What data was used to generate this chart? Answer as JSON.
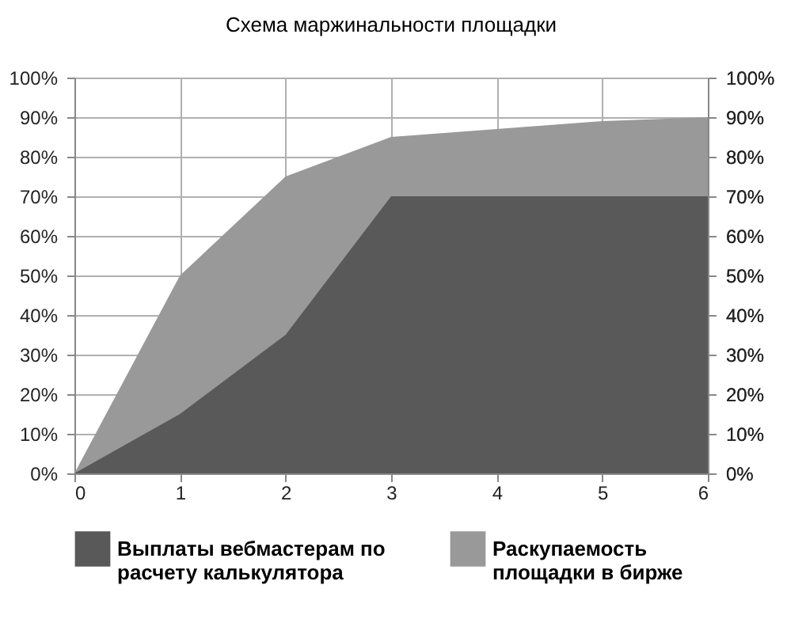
{
  "chart_data": {
    "type": "area",
    "title": "Схема маржинальности площадки",
    "x": [
      0,
      1,
      2,
      3,
      4,
      5,
      6
    ],
    "series": [
      {
        "name": "Выплаты вебмастерам по расчету калькулятора",
        "color": "#595959",
        "values": [
          0,
          15,
          35,
          70,
          70,
          70,
          70
        ]
      },
      {
        "name": "Раскупаемость площадки в бирже",
        "color": "#999999",
        "values": [
          0,
          50,
          75,
          85,
          87,
          89,
          90
        ]
      }
    ],
    "xlim": [
      0,
      6
    ],
    "xticks": [
      0,
      1,
      2,
      3,
      4,
      5,
      6
    ],
    "ylim": [
      0,
      100
    ],
    "yticks": [
      {
        "value": 0,
        "label": "0%"
      },
      {
        "value": 10,
        "label": "10%"
      },
      {
        "value": 20,
        "label": "20%"
      },
      {
        "value": 30,
        "label": "30%"
      },
      {
        "value": 40,
        "label": "40%"
      },
      {
        "value": 50,
        "label": "50%"
      },
      {
        "value": 60,
        "label": "60%"
      },
      {
        "value": 70,
        "label": "70%"
      },
      {
        "value": 80,
        "label": "80%"
      },
      {
        "value": 90,
        "label": "90%"
      },
      {
        "value": 100,
        "label": "100%"
      }
    ],
    "y2lim": [
      0,
      100
    ],
    "y2ticks": [
      {
        "value": 0,
        "label": "0%"
      },
      {
        "value": 10,
        "label": "10%"
      },
      {
        "value": 20,
        "label": "20%"
      },
      {
        "value": 30,
        "label": "30%"
      },
      {
        "value": 40,
        "label": "40%"
      },
      {
        "value": 50,
        "label": "50%"
      },
      {
        "value": 60,
        "label": "60%"
      },
      {
        "value": 70,
        "label": "70%"
      },
      {
        "value": 80,
        "label": "80%"
      },
      {
        "value": 90,
        "label": "90%"
      },
      {
        "value": 100,
        "label": "100%"
      }
    ],
    "grid": true,
    "legend": "bottom"
  }
}
